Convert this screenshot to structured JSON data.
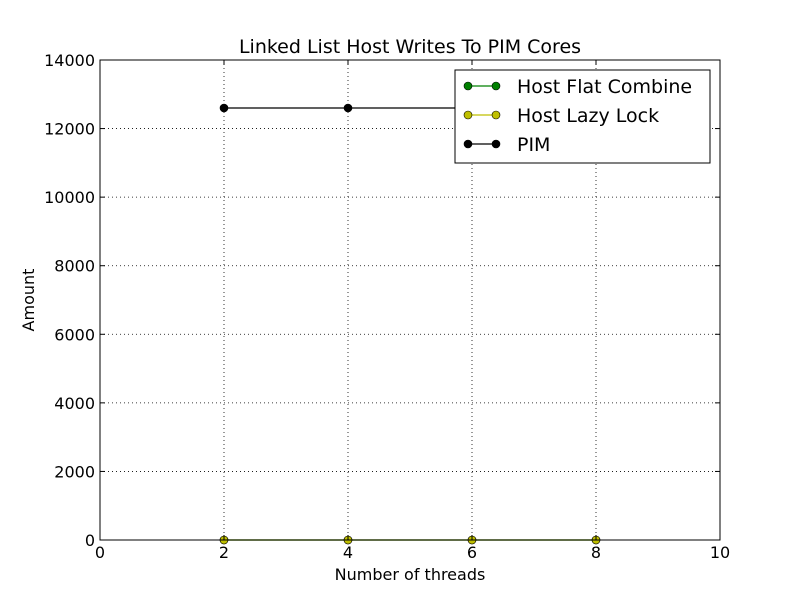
{
  "chart_data": {
    "type": "line",
    "title": "Linked List Host Writes To PIM Cores",
    "xlabel": "Number of threads",
    "ylabel": "Amount",
    "xlim": [
      0,
      10
    ],
    "ylim": [
      0,
      14000
    ],
    "xticks": [
      0,
      2,
      4,
      6,
      8,
      10
    ],
    "yticks": [
      0,
      2000,
      4000,
      6000,
      8000,
      10000,
      12000,
      14000
    ],
    "grid": true,
    "legend_position": "top-right",
    "series": [
      {
        "name": "Host Flat Combine",
        "color": "#008000",
        "marker": "circle",
        "x": [
          2,
          4,
          6,
          8
        ],
        "y": [
          0,
          0,
          0,
          0
        ]
      },
      {
        "name": "Host Lazy Lock",
        "color": "#bfbf00",
        "marker": "circle",
        "x": [
          2,
          4,
          6,
          8
        ],
        "y": [
          0,
          0,
          0,
          0
        ]
      },
      {
        "name": "PIM",
        "color": "#000000",
        "marker": "circle",
        "x": [
          2,
          4,
          6,
          8
        ],
        "y": [
          12600,
          12600,
          12600,
          12600
        ]
      }
    ]
  }
}
